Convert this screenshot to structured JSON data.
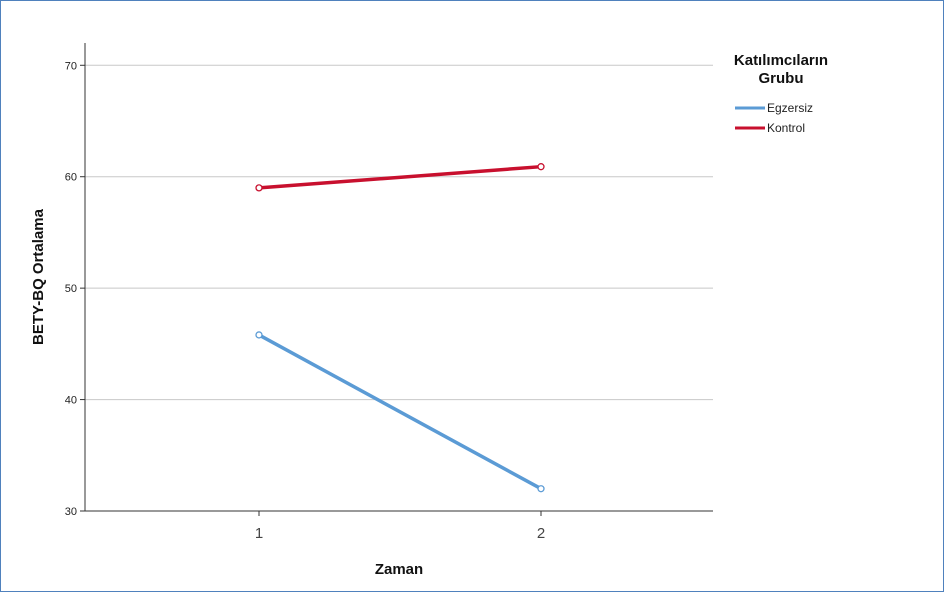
{
  "chart_data": {
    "type": "line",
    "title": "",
    "xlabel": "Zaman",
    "ylabel": "BETY-BQ Ortalama",
    "categories": [
      "1",
      "2"
    ],
    "y_ticks": [
      "30",
      "40",
      "50",
      "60",
      "70"
    ],
    "ylim": [
      30,
      72
    ],
    "grid": true,
    "legend": {
      "title_lines": [
        "Katılımcıların",
        "Grubu"
      ],
      "position": "top-right"
    },
    "series": [
      {
        "name": "Egzersiz",
        "values": [
          45.8,
          32.0
        ],
        "color": "#5b9bd5"
      },
      {
        "name": "Kontrol",
        "values": [
          59.0,
          60.9
        ],
        "color": "#c8102e"
      }
    ]
  }
}
